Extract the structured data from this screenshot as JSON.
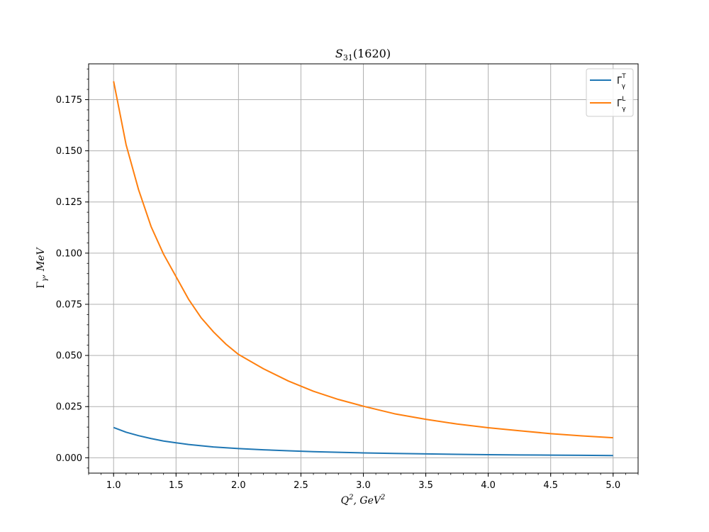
{
  "chart_data": {
    "type": "line",
    "title": {
      "main": "S",
      "sub": "31",
      "rest": "(1620)"
    },
    "xlabel": {
      "base": "Q",
      "sup1": "2",
      "mid": ", GeV",
      "sup2": "2"
    },
    "ylabel": {
      "main": "Γ",
      "sub": "γ",
      "rest": ", MeV"
    },
    "xlim": [
      0.8,
      5.2
    ],
    "ylim": [
      -0.0075,
      0.1925
    ],
    "x_ticks": [
      1.0,
      1.5,
      2.0,
      2.5,
      3.0,
      3.5,
      4.0,
      4.5,
      5.0
    ],
    "x_tick_labels": [
      "1.0",
      "1.5",
      "2.0",
      "2.5",
      "3.0",
      "3.5",
      "4.0",
      "4.5",
      "5.0"
    ],
    "y_ticks": [
      0.0,
      0.025,
      0.05,
      0.075,
      0.1,
      0.125,
      0.15,
      0.175
    ],
    "y_tick_labels": [
      "0.000",
      "0.025",
      "0.050",
      "0.075",
      "0.100",
      "0.125",
      "0.150",
      "0.175"
    ],
    "grid": true,
    "legend": "top-right",
    "x": [
      1.0,
      1.1,
      1.2,
      1.3,
      1.4,
      1.5,
      1.6,
      1.7,
      1.8,
      1.9,
      2.0,
      2.2,
      2.4,
      2.6,
      2.8,
      3.0,
      3.25,
      3.5,
      3.75,
      4.0,
      4.25,
      4.5,
      4.75,
      5.0
    ],
    "series": [
      {
        "name": {
          "main": "Γ",
          "sub": "γ",
          "sup": "T"
        },
        "color": "#1f77b4",
        "values": [
          0.0148,
          0.0125,
          0.0108,
          0.0094,
          0.0082,
          0.0073,
          0.0065,
          0.0059,
          0.0053,
          0.0049,
          0.0045,
          0.0039,
          0.0034,
          0.003,
          0.0027,
          0.0024,
          0.0021,
          0.0019,
          0.0017,
          0.0015,
          0.0014,
          0.0013,
          0.0012,
          0.0011
        ]
      },
      {
        "name": {
          "main": "Γ",
          "sub": "γ",
          "sup": "L"
        },
        "color": "#ff7f0e",
        "values": [
          0.184,
          0.153,
          0.131,
          0.113,
          0.0995,
          0.0885,
          0.0775,
          0.0685,
          0.0615,
          0.0555,
          0.0505,
          0.0435,
          0.0375,
          0.0325,
          0.0285,
          0.0252,
          0.0215,
          0.0188,
          0.0165,
          0.0147,
          0.0132,
          0.0118,
          0.0107,
          0.0098
        ]
      }
    ]
  }
}
